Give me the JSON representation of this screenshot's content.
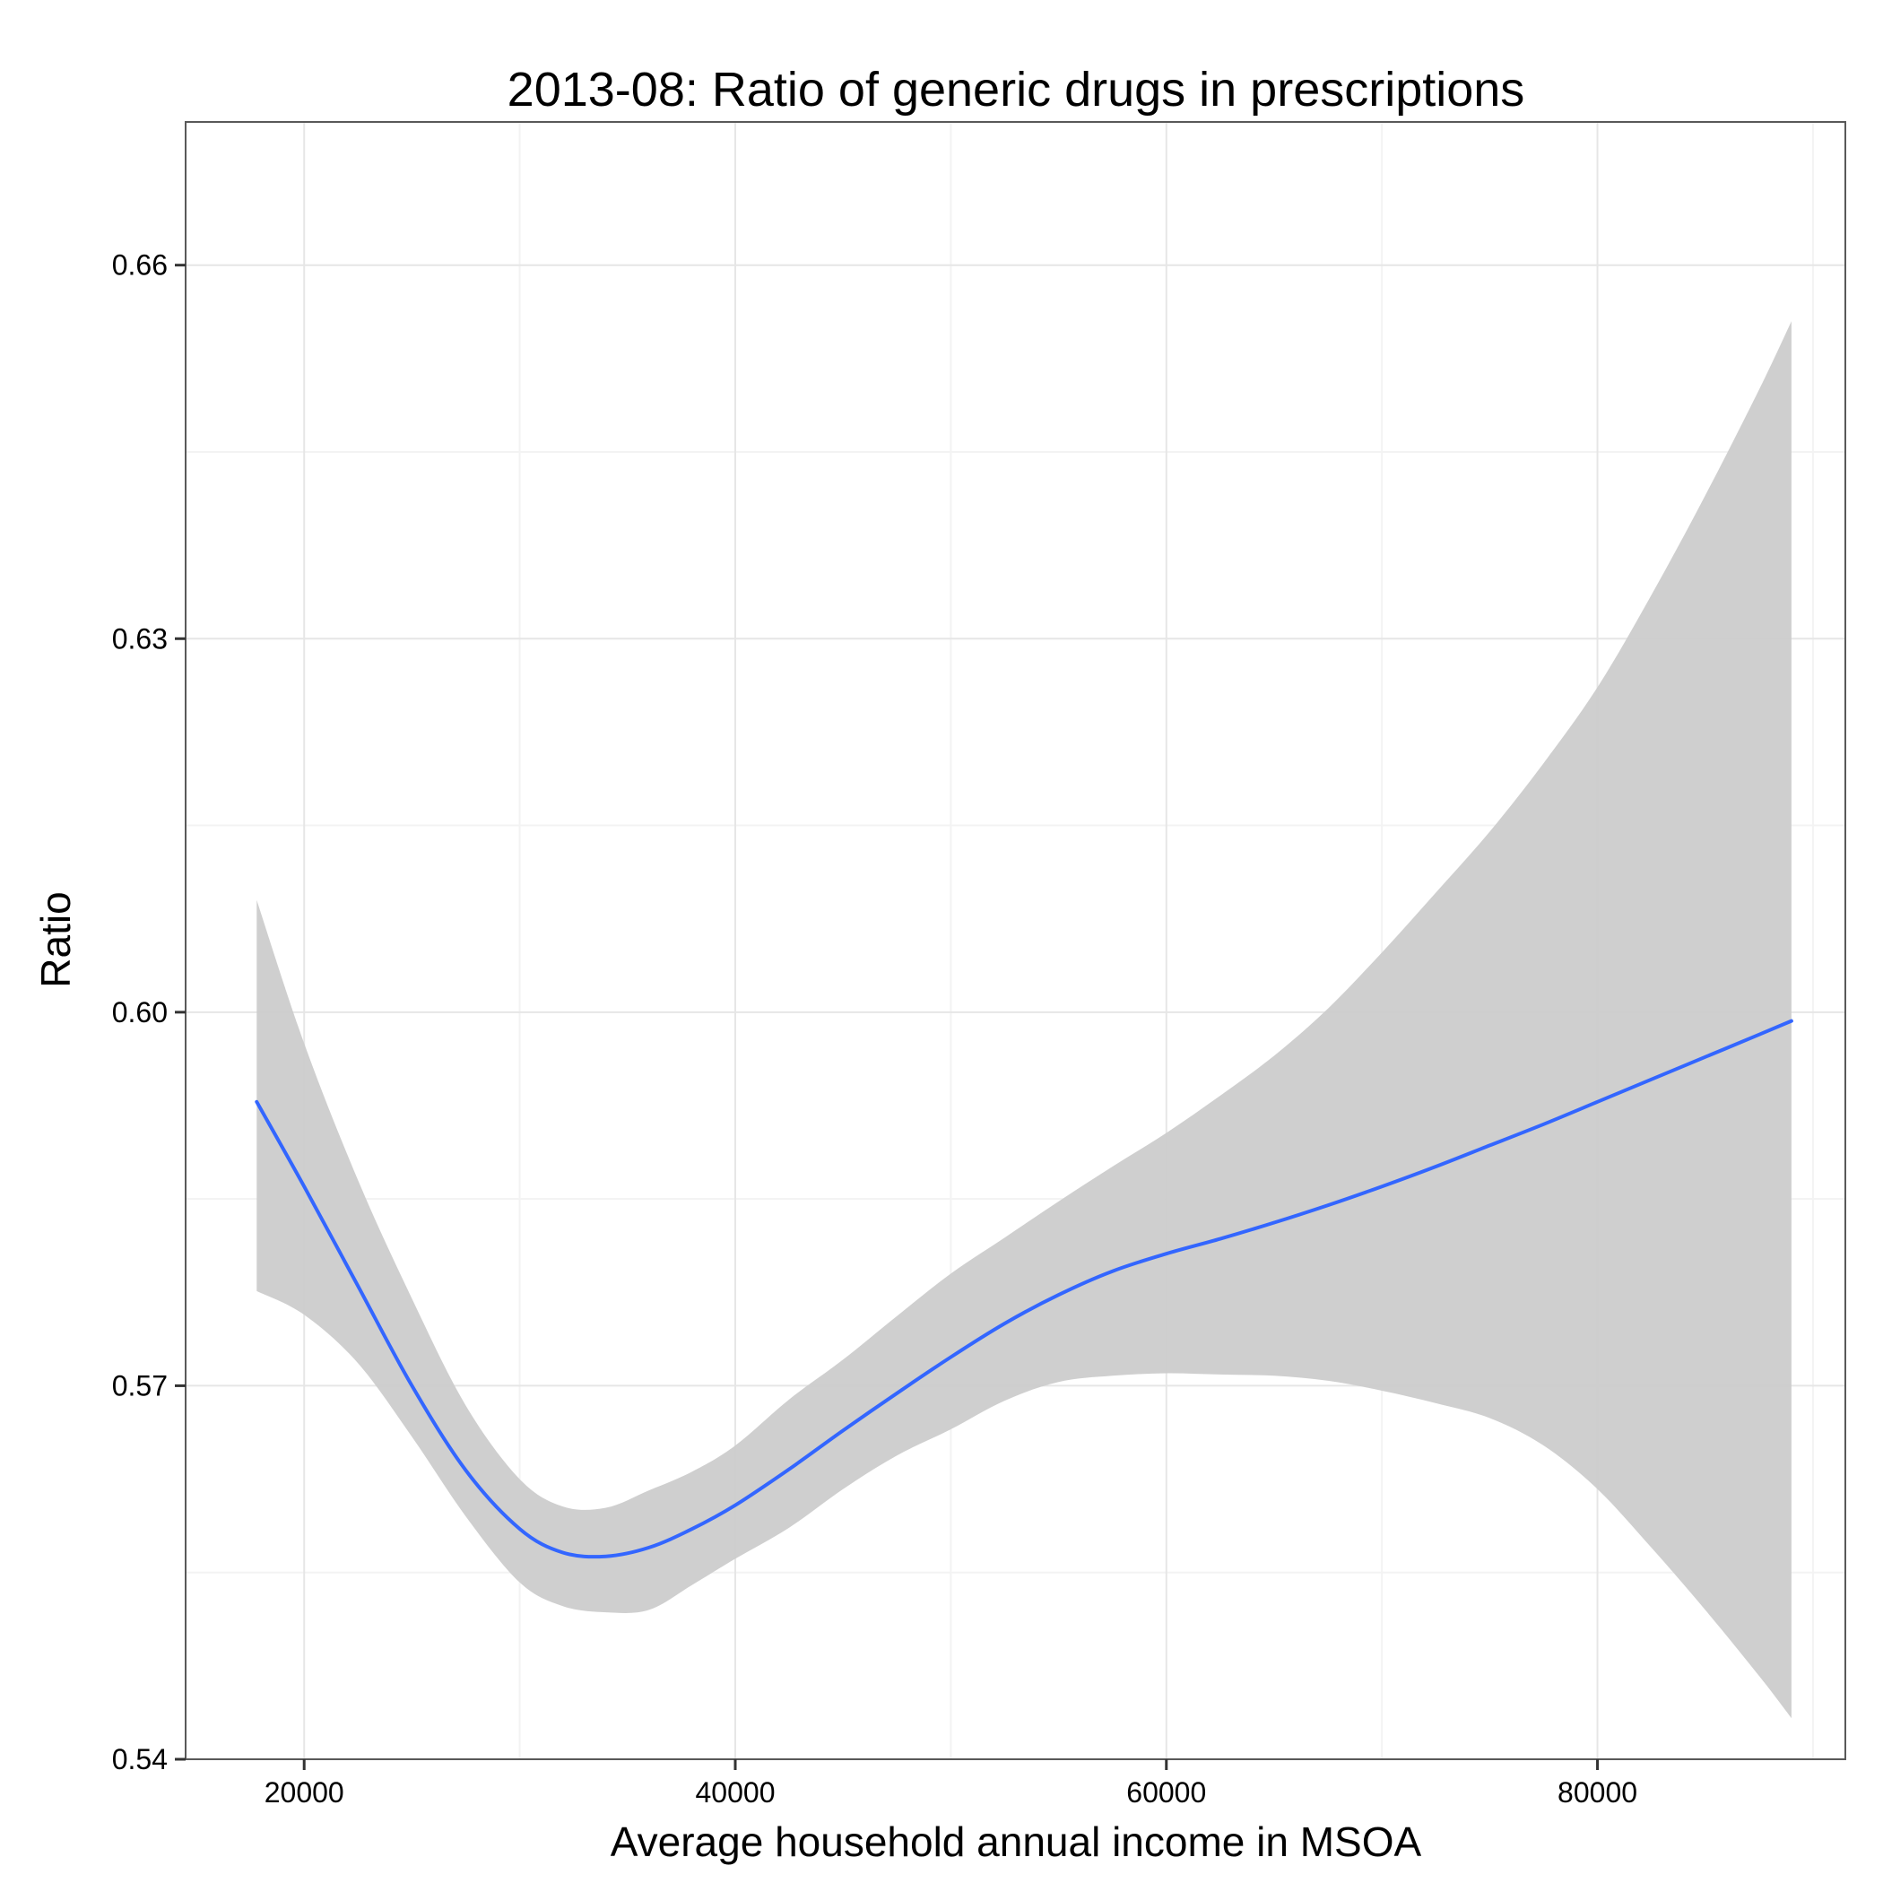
{
  "chart_data": {
    "type": "line",
    "title": "2013-08: Ratio of generic drugs in prescriptions",
    "xlabel": "Average household annual income in MSOA",
    "ylabel": "Ratio",
    "xlim": [
      14500,
      91500
    ],
    "ylim": [
      0.54,
      0.6715
    ],
    "x_ticks": [
      20000,
      40000,
      60000,
      80000
    ],
    "x_tick_labels": [
      "20000",
      "40000",
      "60000",
      "80000"
    ],
    "y_ticks": [
      0.54,
      0.57,
      0.6,
      0.63,
      0.66
    ],
    "y_tick_labels": [
      "0.54",
      "0.57",
      "0.60",
      "0.63",
      "0.66"
    ],
    "grid": true,
    "legend": "none",
    "colors": {
      "line": "#3366ff",
      "band": "#cccccc",
      "grid": "#e6e6e6"
    },
    "series": [
      {
        "x": [
          17800,
          20000,
          22500,
          25000,
          27500,
          30000,
          32000,
          34000,
          36000,
          38000,
          40000,
          42500,
          45000,
          47500,
          50000,
          52500,
          55000,
          57500,
          60000,
          62500,
          65000,
          67500,
          70000,
          72500,
          75000,
          77500,
          80000,
          82500,
          85000,
          87500,
          89000
        ],
        "y": [
          0.5928,
          0.586,
          0.578,
          0.57,
          0.5632,
          0.5585,
          0.5566,
          0.5563,
          0.557,
          0.5585,
          0.5604,
          0.5633,
          0.5664,
          0.5694,
          0.5723,
          0.575,
          0.5773,
          0.5792,
          0.5806,
          0.5818,
          0.5831,
          0.5845,
          0.586,
          0.5876,
          0.5893,
          0.591,
          0.5928,
          0.5946,
          0.5964,
          0.5982,
          0.5993
        ],
        "lower": [
          0.5776,
          0.5757,
          0.5718,
          0.5659,
          0.5595,
          0.5542,
          0.5523,
          0.5518,
          0.552,
          0.554,
          0.5561,
          0.5586,
          0.5617,
          0.5644,
          0.5665,
          0.5688,
          0.5703,
          0.5708,
          0.571,
          0.5709,
          0.5708,
          0.5704,
          0.5696,
          0.5686,
          0.5674,
          0.5652,
          0.5617,
          0.557,
          0.552,
          0.5467,
          0.5433
        ],
        "upper": [
          0.609,
          0.5975,
          0.5865,
          0.577,
          0.5684,
          0.5625,
          0.5603,
          0.5602,
          0.5616,
          0.5631,
          0.5652,
          0.5689,
          0.5721,
          0.5756,
          0.579,
          0.5819,
          0.5848,
          0.5876,
          0.5903,
          0.5933,
          0.5965,
          0.6003,
          0.6048,
          0.6096,
          0.6145,
          0.62,
          0.6261,
          0.6335,
          0.6415,
          0.65,
          0.6555
        ]
      }
    ]
  }
}
